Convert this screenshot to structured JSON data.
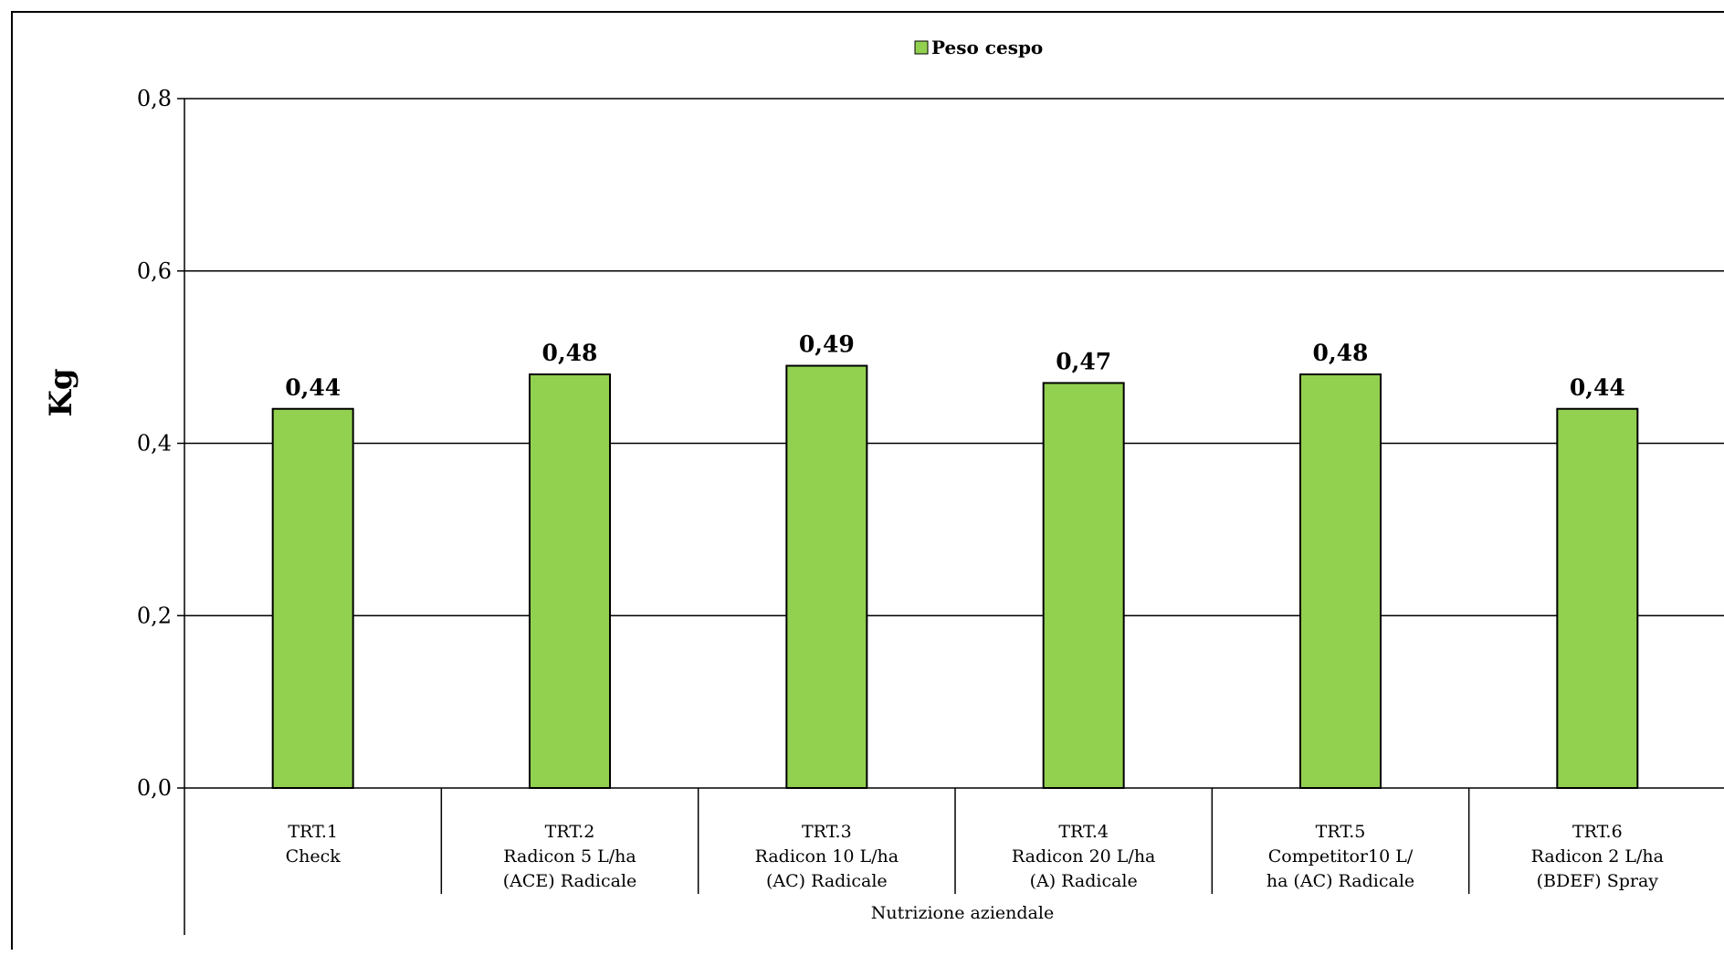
{
  "chart_data": {
    "type": "bar",
    "title": "",
    "ylabel": "Kg",
    "xlabel": "",
    "ylim": [
      0,
      0.8
    ],
    "yticks": [
      "0,0",
      "0,2",
      "0,4",
      "0,6",
      "0,8"
    ],
    "grid": true,
    "legend_position": "top-center",
    "series": [
      {
        "name": "Peso cespo",
        "color": "#92d050",
        "values": [
          0.44,
          0.48,
          0.49,
          0.47,
          0.48,
          0.44
        ],
        "labels": [
          "0,44",
          "0,48",
          "0,49",
          "0,47",
          "0,48",
          "0,44"
        ]
      }
    ],
    "categories": [
      [
        "TRT.1",
        "Check"
      ],
      [
        "TRT.2",
        "Radicon 5 L/ha",
        "(ACE) Radicale"
      ],
      [
        "TRT.3",
        "Radicon 10 L/ha",
        "(AC) Radicale"
      ],
      [
        "TRT.4",
        "Radicon 20 L/ha",
        "(A) Radicale"
      ],
      [
        "TRT.5",
        "Competitor10 L/",
        "ha (AC) Radicale"
      ],
      [
        "TRT.6",
        "Radicon 2 L/ha",
        "(BDEF) Spray"
      ]
    ],
    "group_label": "Nutrizione aziendale"
  }
}
